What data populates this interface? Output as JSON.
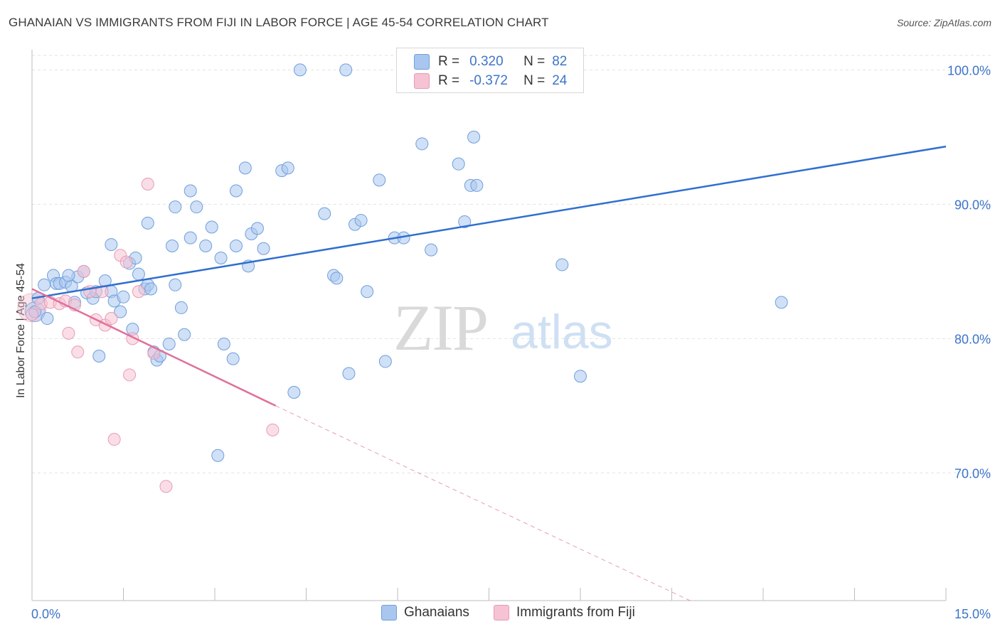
{
  "title": "GHANAIAN VS IMMIGRANTS FROM FIJI IN LABOR FORCE | AGE 45-54 CORRELATION CHART",
  "source": "Source: ZipAtlas.com",
  "watermark": {
    "zip": "ZIP",
    "atlas": "atlas"
  },
  "legend": {
    "r_label": "R =",
    "n_label": "N =",
    "rows": [
      {
        "r": "0.320",
        "n": "82",
        "color": "#a9c6ef"
      },
      {
        "r": "-0.372",
        "n": "24",
        "color": "#f5b8cc"
      }
    ]
  },
  "bottom_legend": [
    "Ghanaians",
    "Immigrants from Fiji"
  ],
  "colors": {
    "blue_fill": "#a9c6ef",
    "blue_stroke": "#6f9fdc",
    "blue_line": "#2f6fcf",
    "pink_fill": "#f5c3d3",
    "pink_stroke": "#e99ab4",
    "pink_line": "#e0709a",
    "axis_text": "#3d74c9",
    "grid": "#e2e2e2"
  },
  "chart_data": {
    "type": "scatter",
    "title": "GHANAIAN VS IMMIGRANTS FROM FIJI IN LABOR FORCE | AGE 45-54 CORRELATION CHART",
    "xlabel": "",
    "ylabel": "In Labor Force | Age 45-54",
    "xlim": [
      0,
      15
    ],
    "ylim": [
      60.5,
      101.5
    ],
    "x_tick_labels": [
      "0.0%",
      "15.0%"
    ],
    "y_ticks": [
      70,
      80,
      90,
      100
    ],
    "y_tick_labels": [
      "70.0%",
      "80.0%",
      "90.0%",
      "100.0%"
    ],
    "grid": true,
    "legend_position": "top-center",
    "series": [
      {
        "name": "Ghanaians",
        "r": 0.32,
        "n": 82,
        "trend": {
          "x": [
            0.0,
            15.0
          ],
          "y": [
            83.0,
            94.3
          ]
        },
        "points": [
          [
            0.05,
            82.0
          ],
          [
            0.1,
            83.0
          ],
          [
            0.2,
            84.0
          ],
          [
            0.35,
            84.7
          ],
          [
            0.4,
            84.1
          ],
          [
            0.45,
            84.1
          ],
          [
            0.55,
            84.2
          ],
          [
            0.65,
            83.9
          ],
          [
            0.7,
            82.7
          ],
          [
            0.75,
            84.6
          ],
          [
            0.85,
            85.0
          ],
          [
            0.9,
            83.4
          ],
          [
            1.0,
            83.0
          ],
          [
            1.05,
            83.5
          ],
          [
            1.2,
            84.3
          ],
          [
            1.3,
            83.5
          ],
          [
            1.35,
            82.8
          ],
          [
            1.45,
            82.0
          ],
          [
            1.5,
            83.1
          ],
          [
            1.6,
            85.6
          ],
          [
            1.65,
            80.7
          ],
          [
            1.75,
            84.8
          ],
          [
            1.85,
            83.7
          ],
          [
            1.9,
            84.0
          ],
          [
            1.95,
            83.7
          ],
          [
            2.0,
            79.0
          ],
          [
            2.05,
            78.4
          ],
          [
            2.1,
            78.7
          ],
          [
            2.25,
            79.6
          ],
          [
            2.3,
            86.9
          ],
          [
            2.35,
            84.0
          ],
          [
            2.45,
            82.3
          ],
          [
            2.5,
            80.3
          ],
          [
            2.6,
            87.5
          ],
          [
            2.85,
            86.9
          ],
          [
            2.95,
            88.3
          ],
          [
            3.1,
            86.0
          ],
          [
            3.15,
            79.6
          ],
          [
            3.3,
            78.5
          ],
          [
            3.35,
            86.9
          ],
          [
            3.55,
            85.4
          ],
          [
            3.6,
            87.8
          ],
          [
            3.7,
            88.2
          ],
          [
            3.8,
            86.7
          ],
          [
            4.1,
            92.5
          ],
          [
            4.2,
            92.7
          ],
          [
            4.3,
            76.0
          ],
          [
            4.8,
            89.3
          ],
          [
            4.95,
            84.7
          ],
          [
            5.0,
            84.5
          ],
          [
            5.2,
            77.4
          ],
          [
            5.3,
            88.5
          ],
          [
            5.4,
            88.8
          ],
          [
            5.5,
            83.5
          ],
          [
            5.7,
            91.8
          ],
          [
            5.8,
            78.3
          ],
          [
            5.95,
            87.5
          ],
          [
            6.1,
            87.5
          ],
          [
            6.4,
            94.5
          ],
          [
            6.55,
            86.6
          ],
          [
            7.0,
            93.0
          ],
          [
            7.1,
            88.7
          ],
          [
            7.2,
            91.4
          ],
          [
            7.25,
            95.0
          ],
          [
            7.3,
            91.4
          ],
          [
            8.7,
            85.5
          ],
          [
            9.0,
            77.2
          ],
          [
            3.5,
            92.7
          ],
          [
            3.35,
            91.0
          ],
          [
            2.6,
            91.0
          ],
          [
            2.35,
            89.8
          ],
          [
            2.7,
            89.8
          ],
          [
            1.9,
            88.6
          ],
          [
            1.3,
            87.0
          ],
          [
            4.4,
            100.0
          ],
          [
            5.15,
            100.0
          ],
          [
            12.3,
            82.7
          ],
          [
            3.05,
            71.3
          ],
          [
            1.1,
            78.7
          ],
          [
            0.25,
            81.5
          ],
          [
            0.6,
            84.7
          ],
          [
            1.7,
            86.0
          ]
        ]
      },
      {
        "name": "Immigrants from Fiji",
        "r": -0.372,
        "n": 24,
        "trend": {
          "x": [
            0.0,
            4.0
          ],
          "y": [
            83.7,
            75.0
          ]
        },
        "trend_extended": {
          "x": [
            4.0,
            10.8
          ],
          "y": [
            75.0,
            60.5
          ]
        },
        "points": [
          [
            0.0,
            81.8
          ],
          [
            0.15,
            82.6
          ],
          [
            0.3,
            82.7
          ],
          [
            0.45,
            82.6
          ],
          [
            0.55,
            82.8
          ],
          [
            0.6,
            80.4
          ],
          [
            0.75,
            79.0
          ],
          [
            0.85,
            85.0
          ],
          [
            0.95,
            83.5
          ],
          [
            1.05,
            81.4
          ],
          [
            1.15,
            83.5
          ],
          [
            1.2,
            81.0
          ],
          [
            1.3,
            81.5
          ],
          [
            1.45,
            86.2
          ],
          [
            1.55,
            85.7
          ],
          [
            1.6,
            77.3
          ],
          [
            1.65,
            80.0
          ],
          [
            1.75,
            83.5
          ],
          [
            1.9,
            91.5
          ],
          [
            2.0,
            78.9
          ],
          [
            1.35,
            72.5
          ],
          [
            2.2,
            69.0
          ],
          [
            3.95,
            73.2
          ],
          [
            0.7,
            82.5
          ]
        ]
      }
    ]
  }
}
